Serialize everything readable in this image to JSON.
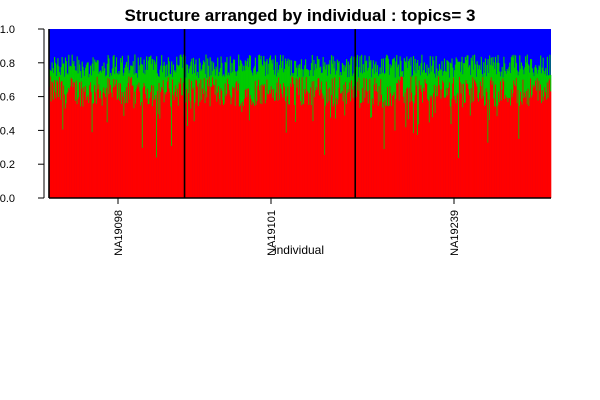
{
  "chart_data": {
    "type": "bar",
    "title": "Structure arranged by individual : topics= 3",
    "xlabel": "individual",
    "ylabel": "",
    "ylim": [
      0,
      1
    ],
    "yticks": [
      "0.0",
      "0.2",
      "0.4",
      "0.6",
      "0.8",
      "1.0"
    ],
    "stacked": true,
    "groups": [
      {
        "label": "NA19098",
        "start": 0,
        "end": 0.27
      },
      {
        "label": "NA19101",
        "start": 0.27,
        "end": 0.61
      },
      {
        "label": "NA19239",
        "start": 0.61,
        "end": 1.0
      }
    ],
    "series": [
      {
        "color": "#ff0000",
        "typical": 0.63
      },
      {
        "color": "#00cc00",
        "typical": 0.15
      },
      {
        "color": "#0000ff",
        "typical": 0.22
      }
    ],
    "n_bars": 600,
    "grid": false,
    "legend": "none"
  }
}
